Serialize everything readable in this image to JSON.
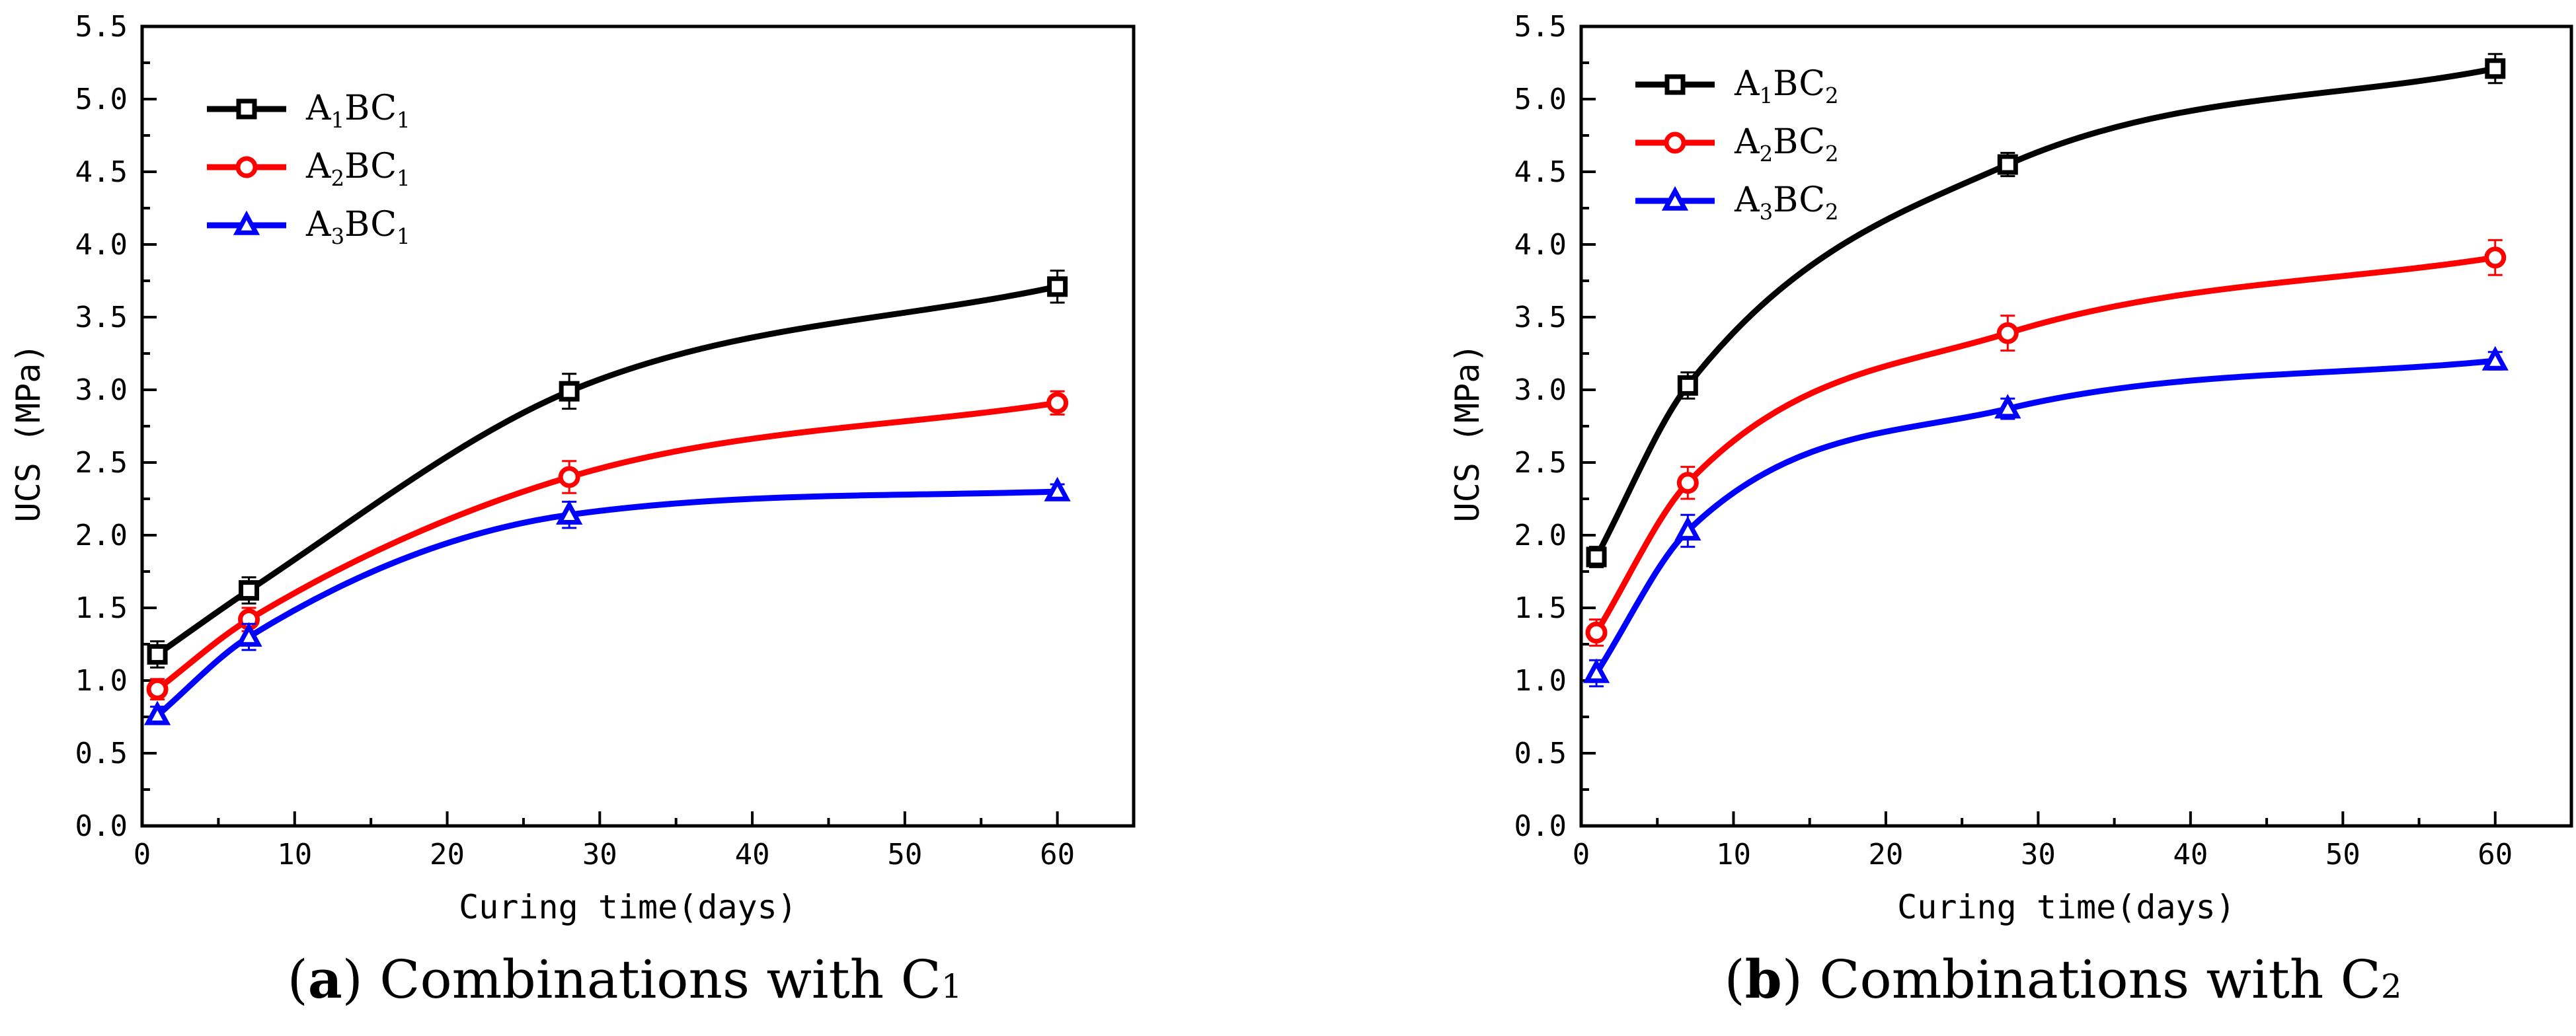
{
  "chart_data": [
    {
      "type": "line",
      "caption_letter": "a",
      "caption_text": "Combinations with C",
      "caption_sub": "1",
      "xlabel": "Curing time(days)",
      "ylabel": "UCS (MPa)",
      "xlim": [
        0,
        65
      ],
      "ylim": [
        0,
        5.5
      ],
      "xticks": [
        0,
        10,
        20,
        30,
        40,
        50,
        60
      ],
      "yticks": [
        0.0,
        0.5,
        1.0,
        1.5,
        2.0,
        2.5,
        3.0,
        3.5,
        4.0,
        4.5,
        5.0,
        5.5
      ],
      "x": [
        1,
        7,
        28,
        60
      ],
      "legend_position": "top-left",
      "series": [
        {
          "name": "A1BC1",
          "name_parts": [
            "A",
            "1",
            "BC",
            "1"
          ],
          "color": "#000000",
          "marker": "square",
          "values": [
            1.18,
            1.62,
            2.99,
            3.71
          ],
          "errors": [
            0.09,
            0.09,
            0.12,
            0.11
          ]
        },
        {
          "name": "A2BC1",
          "name_parts": [
            "A",
            "2",
            "BC",
            "1"
          ],
          "color": "#ff0000",
          "marker": "circle",
          "values": [
            0.94,
            1.42,
            2.4,
            2.91
          ],
          "errors": [
            0.07,
            0.08,
            0.11,
            0.08
          ]
        },
        {
          "name": "A3BC1",
          "name_parts": [
            "A",
            "3",
            "BC",
            "1"
          ],
          "color": "#0000ff",
          "marker": "triangle",
          "values": [
            0.76,
            1.3,
            2.14,
            2.3
          ],
          "errors": [
            0.06,
            0.09,
            0.09,
            0.05
          ]
        }
      ]
    },
    {
      "type": "line",
      "caption_letter": "b",
      "caption_text": "Combinations with C",
      "caption_sub": "2",
      "xlabel": "Curing time(days)",
      "ylabel": "UCS (MPa)",
      "xlim": [
        0,
        65
      ],
      "ylim": [
        0,
        5.5
      ],
      "xticks": [
        0,
        10,
        20,
        30,
        40,
        50,
        60
      ],
      "yticks": [
        0.0,
        0.5,
        1.0,
        1.5,
        2.0,
        2.5,
        3.0,
        3.5,
        4.0,
        4.5,
        5.0,
        5.5
      ],
      "x": [
        1,
        7,
        28,
        60
      ],
      "legend_position": "top-left",
      "series": [
        {
          "name": "A1BC2",
          "name_parts": [
            "A",
            "1",
            "BC",
            "2"
          ],
          "color": "#000000",
          "marker": "square",
          "values": [
            1.85,
            3.03,
            4.55,
            5.21
          ],
          "errors": [
            0.07,
            0.09,
            0.08,
            0.1
          ]
        },
        {
          "name": "A2BC2",
          "name_parts": [
            "A",
            "2",
            "BC",
            "2"
          ],
          "color": "#ff0000",
          "marker": "circle",
          "values": [
            1.33,
            2.36,
            3.39,
            3.91
          ],
          "errors": [
            0.09,
            0.11,
            0.12,
            0.12
          ]
        },
        {
          "name": "A3BC2",
          "name_parts": [
            "A",
            "3",
            "BC",
            "2"
          ],
          "color": "#0000ff",
          "marker": "triangle",
          "values": [
            1.05,
            2.03,
            2.87,
            3.2
          ],
          "errors": [
            0.09,
            0.11,
            0.07,
            0.06
          ]
        }
      ]
    }
  ]
}
